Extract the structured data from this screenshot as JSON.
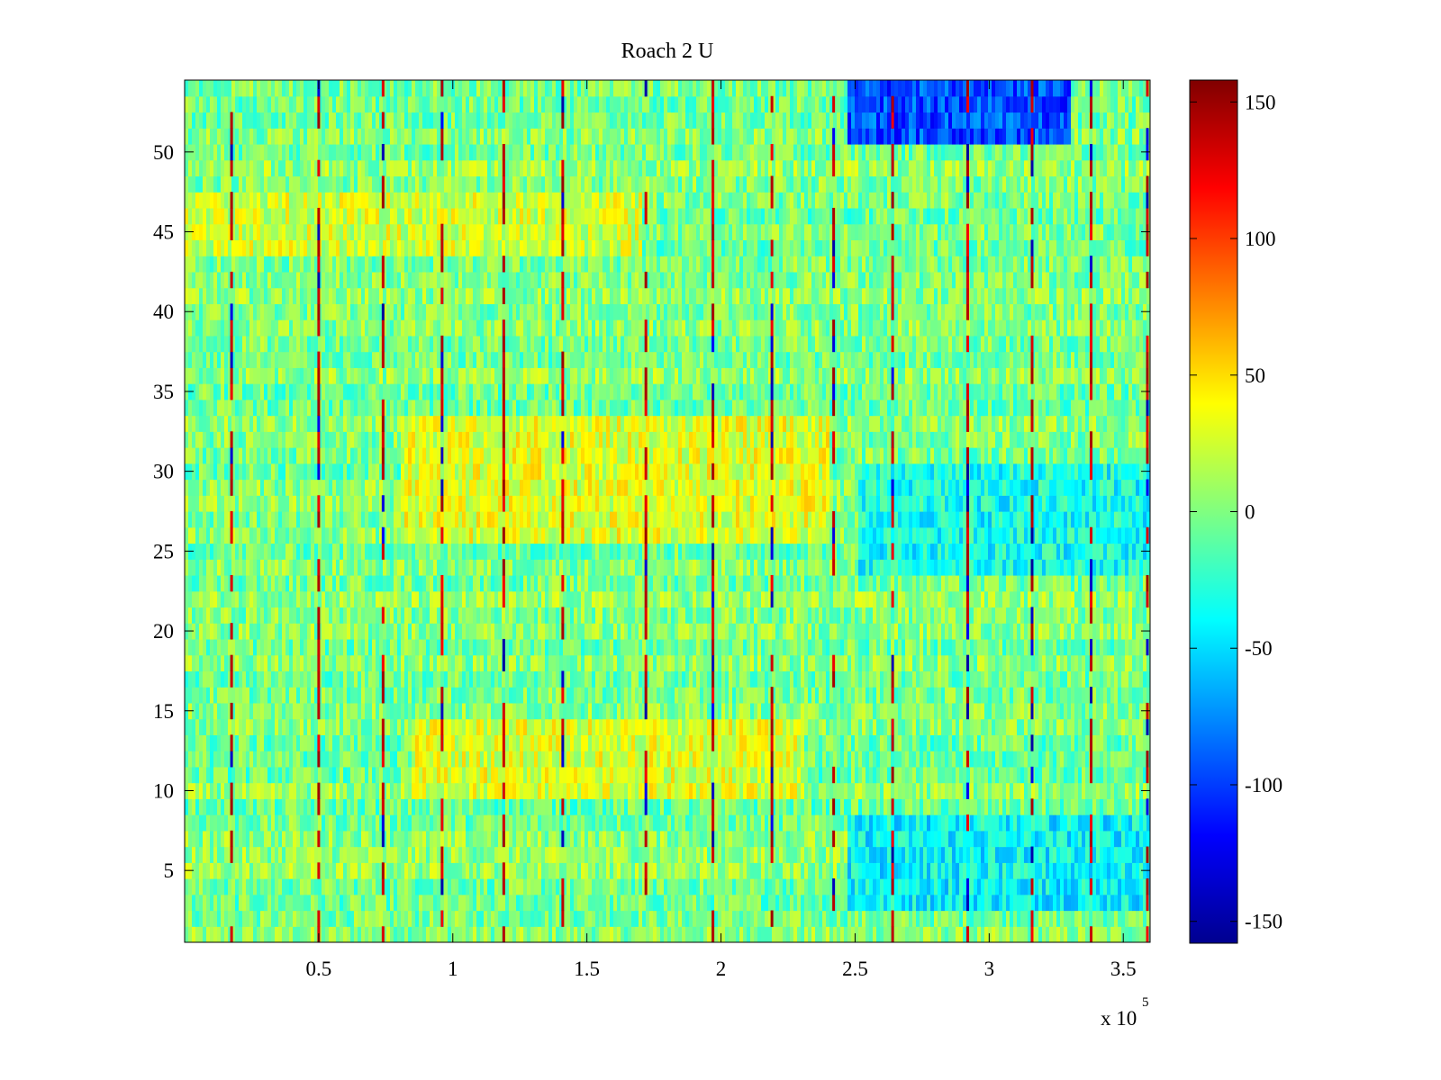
{
  "chart_data": {
    "type": "heatmap",
    "title": "Roach 2 U",
    "xlabel": "",
    "ylabel": "",
    "x_exponent_label": "x 10",
    "x_exponent_power": "5",
    "xlim": [
      0,
      360000
    ],
    "ylim": [
      0.5,
      54.5
    ],
    "rows": 54,
    "x_ticks": [
      {
        "value": 50000,
        "label": "0.5"
      },
      {
        "value": 100000,
        "label": "1"
      },
      {
        "value": 150000,
        "label": "1.5"
      },
      {
        "value": 200000,
        "label": "2"
      },
      {
        "value": 250000,
        "label": "2.5"
      },
      {
        "value": 300000,
        "label": "3"
      },
      {
        "value": 350000,
        "label": "3.5"
      }
    ],
    "y_ticks": [
      {
        "value": 5,
        "label": "5"
      },
      {
        "value": 10,
        "label": "10"
      },
      {
        "value": 15,
        "label": "15"
      },
      {
        "value": 20,
        "label": "20"
      },
      {
        "value": 25,
        "label": "25"
      },
      {
        "value": 30,
        "label": "30"
      },
      {
        "value": 35,
        "label": "35"
      },
      {
        "value": 40,
        "label": "40"
      },
      {
        "value": 45,
        "label": "45"
      },
      {
        "value": 50,
        "label": "50"
      }
    ],
    "colorbar": {
      "colormap": "jet",
      "clim": [
        -158,
        158
      ],
      "ticks": [
        {
          "value": 150,
          "label": "150"
        },
        {
          "value": 100,
          "label": "100"
        },
        {
          "value": 50,
          "label": "50"
        },
        {
          "value": 0,
          "label": "0"
        },
        {
          "value": -50,
          "label": "-50"
        },
        {
          "value": -100,
          "label": "-100"
        },
        {
          "value": -150,
          "label": "-150"
        }
      ]
    },
    "background_value": 0,
    "spike_x": [
      17500,
      50000,
      74000,
      96000,
      119000,
      141000,
      172000,
      197000,
      219000,
      242000,
      264000,
      292000,
      316000,
      338000,
      359000
    ],
    "spike_value": 150,
    "regions": [
      {
        "x_range": [
          247000,
          330000
        ],
        "y_range": [
          51,
          54
        ],
        "value": -95
      },
      {
        "x_range": [
          247000,
          360000
        ],
        "y_range": [
          3,
          8
        ],
        "value": -40
      },
      {
        "x_range": [
          80000,
          240000
        ],
        "y_range": [
          26,
          33
        ],
        "value": 30
      },
      {
        "x_range": [
          84000,
          230000
        ],
        "y_range": [
          10,
          14
        ],
        "value": 28
      },
      {
        "x_range": [
          0,
          170000
        ],
        "y_range": [
          44,
          47
        ],
        "value": 25
      },
      {
        "x_range": [
          250000,
          360000
        ],
        "y_range": [
          24,
          30
        ],
        "value": -35
      }
    ]
  },
  "grid": false,
  "grid_note": "cell values vary row by row around the listed regions"
}
